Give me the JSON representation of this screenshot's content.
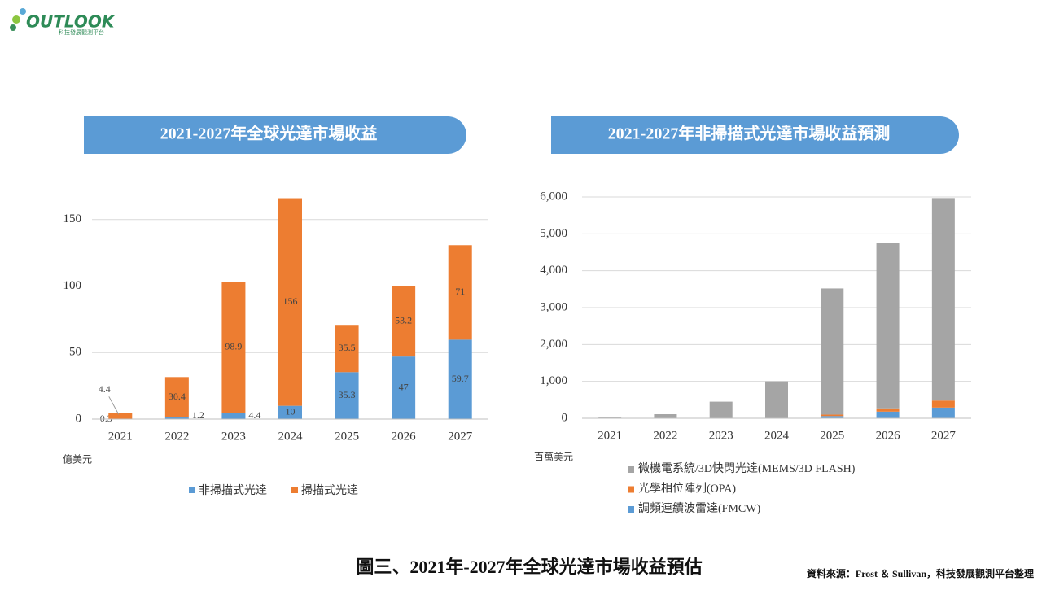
{
  "header": {
    "logo": "OUTLOOK",
    "logo_sub": "科技發展觀測平台"
  },
  "chart_data": [
    {
      "type": "stacked_bar",
      "title": "2021-2027年全球光達市場收益",
      "y_unit": "億美元",
      "categories": [
        "2021",
        "2022",
        "2023",
        "2024",
        "2025",
        "2026",
        "2027"
      ],
      "series": [
        {
          "name": "非掃描式光達",
          "color": "#5b9bd5",
          "values": [
            0.3,
            1.2,
            4.4,
            10,
            35.3,
            47,
            59.7
          ]
        },
        {
          "name": "掃描式光達",
          "color": "#ed7d31",
          "values": [
            4.4,
            30.4,
            98.9,
            156,
            35.5,
            53.2,
            71
          ]
        }
      ],
      "ylim": [
        0,
        170
      ],
      "yticks": [
        0,
        50,
        100,
        150
      ],
      "grid": true,
      "legend": "bottom",
      "data_labels": true
    },
    {
      "type": "stacked_bar",
      "title": "2021-2027年非掃描式光達市場收益預測",
      "y_unit": "百萬美元",
      "categories": [
        "2021",
        "2022",
        "2023",
        "2024",
        "2025",
        "2026",
        "2027"
      ],
      "series": [
        {
          "name": "調頻連續波雷達(FMCW)",
          "color": "#5b9bd5",
          "values": [
            0,
            0,
            0,
            0,
            60,
            180,
            290
          ]
        },
        {
          "name": "光學相位陣列(OPA)",
          "color": "#ed7d31",
          "values": [
            0,
            0,
            0,
            0,
            40,
            90,
            190
          ]
        },
        {
          "name": "微機電系統/3D快閃光達(MEMS/3D FLASH)",
          "color": "#a5a5a5",
          "values": [
            20,
            110,
            450,
            1000,
            3420,
            4490,
            5490
          ]
        }
      ],
      "ylim": [
        0,
        6000
      ],
      "yticks": [
        0,
        {
          "value": 1000,
          "label": "1,000"
        },
        {
          "value": 2000,
          "label": "2,000"
        },
        {
          "value": 3000,
          "label": "3,000"
        },
        {
          "value": 4000,
          "label": "4,000"
        },
        {
          "value": 5000,
          "label": "5,000"
        },
        {
          "value": 6000,
          "label": "6,000"
        }
      ],
      "grid": true,
      "legend": "bottom-left",
      "data_labels": false
    }
  ],
  "footer": {
    "caption": "圖三、2021年-2027年全球光達市場收益預估",
    "source": "資料來源：Frost ＆ Sullivan，科技發展觀測平台整理"
  }
}
